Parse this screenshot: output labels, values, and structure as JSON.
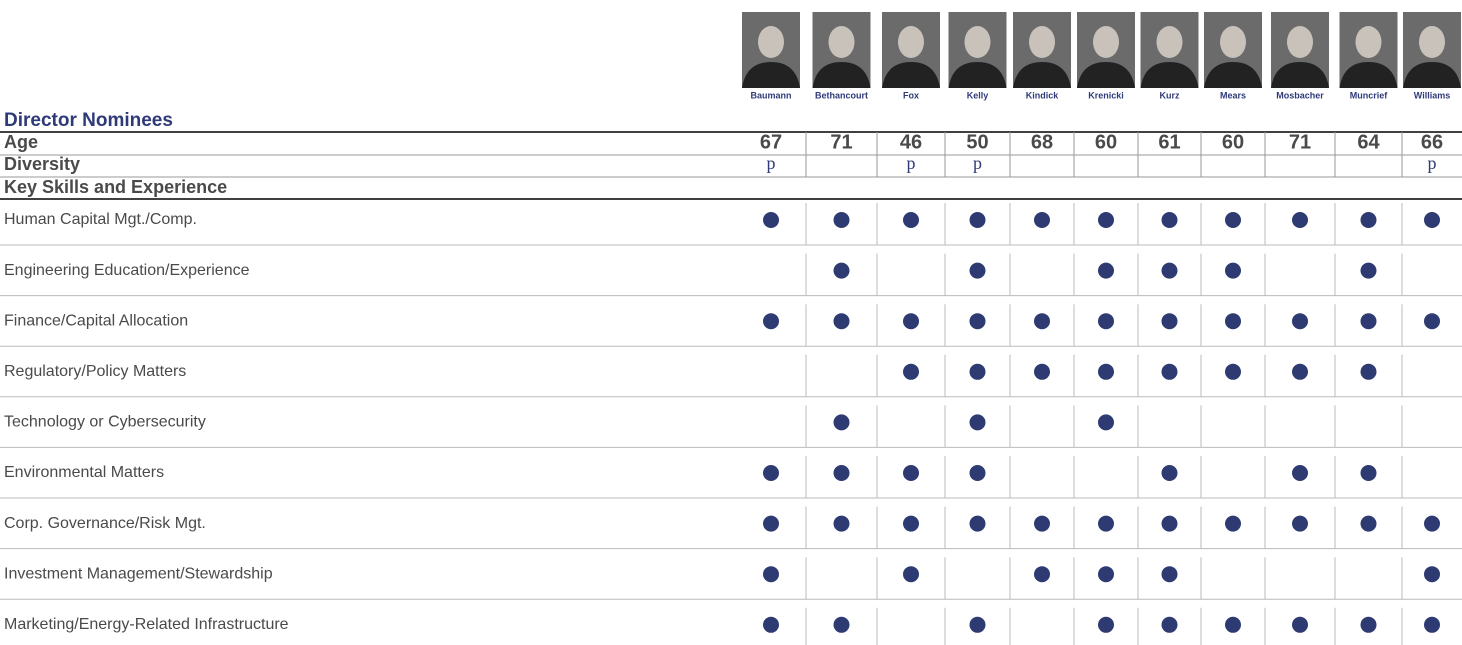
{
  "header": {
    "title": "Director Nominees"
  },
  "directors": [
    "Baumann",
    "Bethancourt",
    "Fox",
    "Kelly",
    "Kindick",
    "Krenicki",
    "Kurz",
    "Mears",
    "Mosbacher",
    "Muncrief",
    "Williams"
  ],
  "age": {
    "label": "Age",
    "values": [
      67,
      71,
      46,
      50,
      68,
      60,
      61,
      60,
      71,
      64,
      66
    ]
  },
  "diversity": {
    "label": "Diversity",
    "values": [
      "p",
      null,
      "p",
      "p",
      null,
      null,
      null,
      null,
      null,
      null,
      "p"
    ]
  },
  "skills": {
    "heading": "Key Skills and Experience",
    "rows": [
      {
        "label": "Human Capital Mgt./Comp.",
        "marks": [
          true,
          true,
          true,
          true,
          true,
          true,
          true,
          true,
          true,
          true,
          true
        ]
      },
      {
        "label": "Engineering Education/Experience",
        "marks": [
          false,
          true,
          false,
          true,
          false,
          true,
          true,
          true,
          false,
          true,
          false
        ]
      },
      {
        "label": "Finance/Capital Allocation",
        "marks": [
          true,
          true,
          true,
          true,
          true,
          true,
          true,
          true,
          true,
          true,
          true
        ]
      },
      {
        "label": "Regulatory/Policy Matters",
        "marks": [
          false,
          false,
          true,
          true,
          true,
          true,
          true,
          true,
          true,
          true,
          false
        ]
      },
      {
        "label": "Technology or Cybersecurity",
        "marks": [
          false,
          true,
          false,
          true,
          false,
          true,
          false,
          false,
          false,
          false,
          false
        ]
      },
      {
        "label": "Environmental Matters",
        "marks": [
          true,
          true,
          true,
          true,
          false,
          false,
          true,
          false,
          true,
          true,
          false
        ]
      },
      {
        "label": "Corp. Governance/Risk Mgt.",
        "marks": [
          true,
          true,
          true,
          true,
          true,
          true,
          true,
          true,
          true,
          true,
          true
        ]
      },
      {
        "label": "Investment Management/Stewardship",
        "marks": [
          true,
          false,
          true,
          false,
          true,
          true,
          true,
          false,
          false,
          false,
          true
        ]
      },
      {
        "label": "Marketing/Energy-Related Infrastructure",
        "marks": [
          true,
          true,
          false,
          true,
          false,
          true,
          true,
          true,
          true,
          true,
          true
        ]
      }
    ]
  }
}
